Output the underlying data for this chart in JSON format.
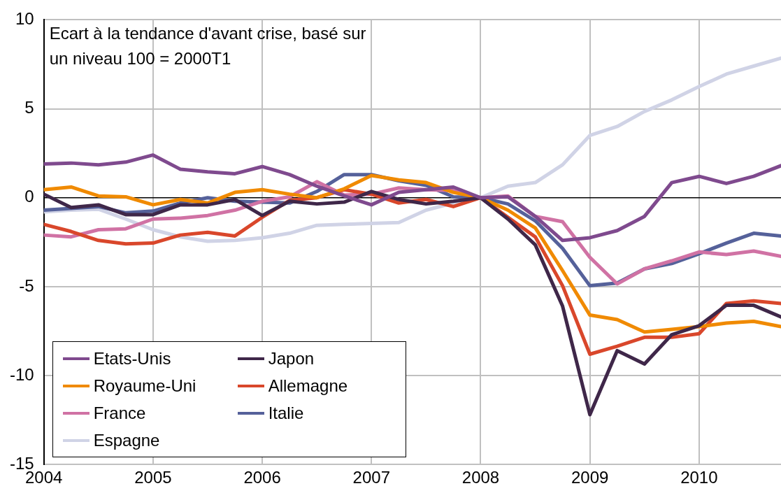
{
  "chart_data": {
    "type": "line",
    "annotations": [
      "Ecart à la tendance d'avant crise, basé sur un niveau 100 = 2000T1"
    ],
    "x": [
      2004,
      2004.25,
      2004.5,
      2004.75,
      2005,
      2005.25,
      2005.5,
      2005.75,
      2006,
      2006.25,
      2006.5,
      2006.75,
      2007,
      2007.25,
      2007.5,
      2007.75,
      2008,
      2008.25,
      2008.5,
      2008.75,
      2009,
      2009.25,
      2009.5,
      2009.75,
      2010,
      2010.25,
      2010.5,
      2010.75
    ],
    "xlim": [
      2004,
      2010.75
    ],
    "xticks": [
      2004,
      2005,
      2006,
      2007,
      2008,
      2009,
      2010
    ],
    "ylim": [
      -15,
      10
    ],
    "yticks": [
      -15,
      -10,
      -5,
      0,
      5,
      10
    ],
    "grid": true,
    "legend": "bottom left",
    "marker": "none",
    "line_style": "solid",
    "series": [
      {
        "name": "Etats-Unis",
        "color": "#7f4a8e",
        "values": [
          1.9,
          1.95,
          1.85,
          2.0,
          2.4,
          1.6,
          1.45,
          1.35,
          1.75,
          1.3,
          0.65,
          0.1,
          -0.4,
          0.3,
          0.45,
          0.6,
          0,
          0.05,
          -1.05,
          -2.4,
          -2.25,
          -1.85,
          -1.05,
          0.85,
          1.2,
          0.8,
          1.2,
          1.8
        ]
      },
      {
        "name": "Japon",
        "color": "#3f2749",
        "values": [
          0.2,
          -0.55,
          -0.4,
          -0.95,
          -0.95,
          -0.4,
          -0.4,
          -0.1,
          -1.0,
          -0.2,
          -0.35,
          -0.25,
          0.35,
          -0.1,
          -0.35,
          -0.2,
          0,
          -1.2,
          -2.65,
          -6.1,
          -12.2,
          -8.6,
          -9.35,
          -7.7,
          -7.2,
          -6.05,
          -6.05,
          -6.7
        ]
      },
      {
        "name": "Royaume-Uni",
        "color": "#f08a00",
        "values": [
          0.45,
          0.6,
          0.1,
          0.05,
          -0.4,
          -0.1,
          -0.3,
          0.3,
          0.45,
          0.2,
          0.0,
          0.5,
          1.25,
          1.0,
          0.85,
          0.3,
          0,
          -0.7,
          -1.7,
          -4.1,
          -6.6,
          -6.85,
          -7.55,
          -7.4,
          -7.25,
          -7.05,
          -6.95,
          -7.25
        ]
      },
      {
        "name": "Allemagne",
        "color": "#d9472b",
        "values": [
          -1.5,
          -1.9,
          -2.4,
          -2.6,
          -2.55,
          -2.1,
          -1.95,
          -2.15,
          -1.1,
          -0.15,
          0.0,
          0.45,
          0.2,
          -0.3,
          -0.1,
          -0.5,
          0,
          -1.1,
          -2.2,
          -4.95,
          -8.8,
          -8.35,
          -7.85,
          -7.85,
          -7.65,
          -5.95,
          -5.8,
          -5.95
        ]
      },
      {
        "name": "France",
        "color": "#d072a4",
        "values": [
          -2.1,
          -2.2,
          -1.8,
          -1.75,
          -1.2,
          -1.15,
          -1.0,
          -0.7,
          -0.2,
          0.05,
          0.9,
          0.15,
          0.2,
          0.55,
          0.45,
          0.4,
          0,
          0.1,
          -1.05,
          -1.35,
          -3.35,
          -4.85,
          -4.0,
          -3.55,
          -3.05,
          -3.2,
          -3.0,
          -3.3
        ]
      },
      {
        "name": "Italie",
        "color": "#55619a",
        "values": [
          -0.7,
          -0.6,
          -0.5,
          -0.85,
          -0.75,
          -0.3,
          0.0,
          -0.2,
          -0.25,
          -0.3,
          0.35,
          1.3,
          1.3,
          0.95,
          0.7,
          0.05,
          0,
          -0.35,
          -1.3,
          -2.85,
          -4.95,
          -4.8,
          -4.0,
          -3.7,
          -3.15,
          -2.55,
          -2.0,
          -2.15
        ]
      },
      {
        "name": "Espagne",
        "color": "#d0d3e6",
        "values": [
          -0.8,
          -0.7,
          -0.65,
          -1.2,
          -1.8,
          -2.2,
          -2.45,
          -2.4,
          -2.25,
          -2.0,
          -1.55,
          -1.5,
          -1.45,
          -1.4,
          -0.7,
          -0.3,
          0,
          0.65,
          0.85,
          1.85,
          3.5,
          4.0,
          4.85,
          5.5,
          6.25,
          6.95,
          7.4,
          7.85
        ]
      }
    ]
  }
}
